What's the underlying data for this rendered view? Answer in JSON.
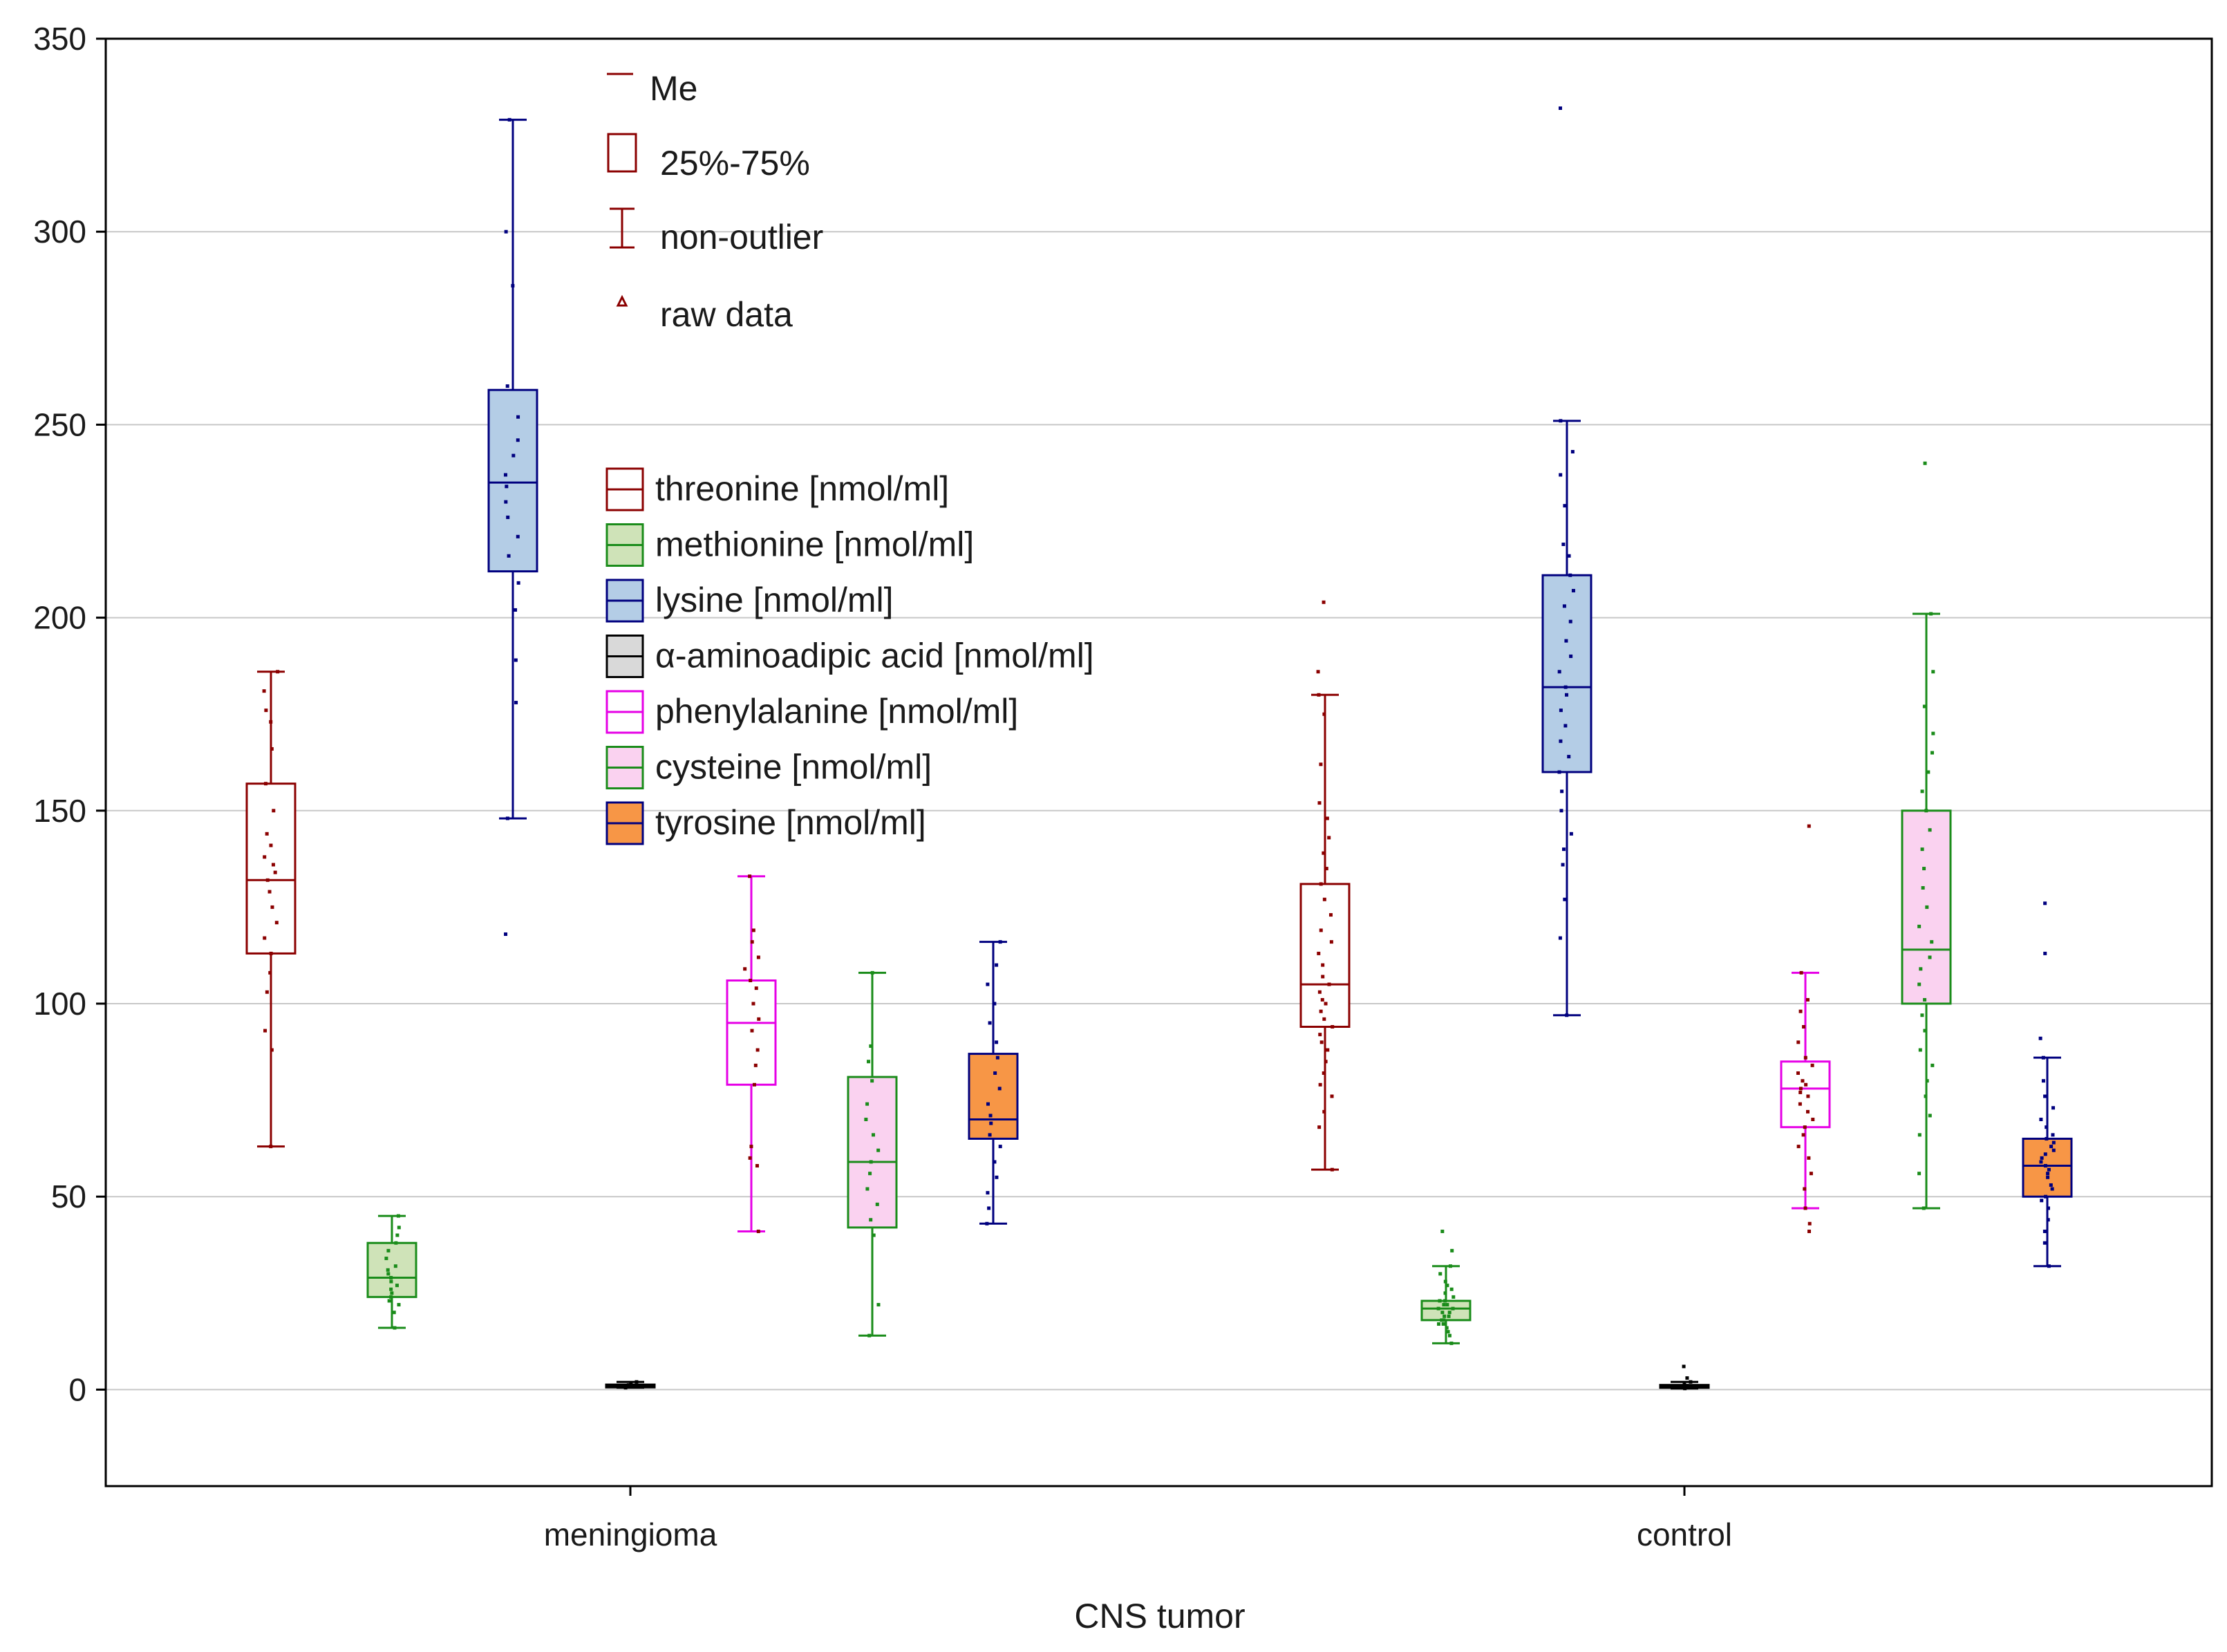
{
  "chart_data": {
    "type": "box",
    "title": "",
    "xlabel": "CNS tumor",
    "ylabel": "",
    "ylim": [
      -25,
      350
    ],
    "yticks": [
      0,
      50,
      100,
      150,
      200,
      250,
      300,
      350
    ],
    "grid": "horizontal",
    "categories": [
      "meningioma",
      "control"
    ],
    "stats_legend": [
      {
        "name": "Me",
        "marker": "median-line"
      },
      {
        "name": "25%-75%",
        "marker": "box"
      },
      {
        "name": "non-outlier",
        "marker": "whisker"
      },
      {
        "name": "raw data",
        "marker": "point"
      }
    ],
    "series": [
      {
        "name": "threonine  [nmol/ml]",
        "box_color": "#ffffff",
        "line_color": "#8b0000",
        "point_color": "#8b0000",
        "data": [
          {
            "category": "meningioma",
            "min": 63,
            "q1": 113,
            "median": 132,
            "q3": 157,
            "max": 186,
            "raw": [
              63,
              88,
              93,
              103,
              108,
              113,
              117,
              121,
              125,
              129,
              132,
              134,
              136,
              138,
              141,
              144,
              150,
              157,
              166,
              173,
              176,
              181,
              186
            ]
          },
          {
            "category": "control",
            "min": 57,
            "q1": 94,
            "median": 105,
            "q3": 131,
            "max": 180,
            "raw": [
              57,
              68,
              72,
              76,
              79,
              82,
              85,
              88,
              90,
              92,
              94,
              96,
              98,
              100,
              101,
              103,
              105,
              107,
              110,
              113,
              116,
              119,
              123,
              127,
              131,
              135,
              139,
              143,
              148,
              152,
              162,
              175,
              180,
              186,
              204
            ]
          }
        ]
      },
      {
        "name": "methionine [nmol/ml]",
        "box_color": "#cfe3b8",
        "line_color": "#1a8c1a",
        "point_color": "#1a8c1a",
        "data": [
          {
            "category": "meningioma",
            "min": 16,
            "q1": 24,
            "median": 29,
            "q3": 38,
            "max": 45,
            "raw": [
              16,
              20,
              22,
              23,
              24,
              25,
              26,
              27,
              28,
              29,
              30,
              31,
              32,
              34,
              36,
              38,
              40,
              42,
              45
            ]
          },
          {
            "category": "control",
            "min": 12,
            "q1": 18,
            "median": 21,
            "q3": 23,
            "max": 32,
            "raw": [
              12,
              14,
              15,
              16,
              17,
              17,
              18,
              18,
              19,
              19,
              20,
              20,
              21,
              21,
              22,
              22,
              23,
              23,
              24,
              25,
              26,
              27,
              28,
              30,
              32,
              36,
              41
            ]
          }
        ]
      },
      {
        "name": "lysine [nmol/ml]",
        "box_color": "#b4cde6",
        "line_color": "#00007f",
        "point_color": "#00007f",
        "data": [
          {
            "category": "meningioma",
            "min": 148,
            "q1": 212,
            "median": 235,
            "q3": 259,
            "max": 329,
            "raw": [
              118,
              148,
              178,
              189,
              202,
              209,
              216,
              221,
              226,
              230,
              234,
              237,
              242,
              246,
              252,
              260,
              286,
              300,
              329
            ]
          },
          {
            "category": "control",
            "min": 97,
            "q1": 160,
            "median": 182,
            "q3": 211,
            "max": 251,
            "raw": [
              97,
              117,
              127,
              136,
              140,
              144,
              150,
              155,
              160,
              164,
              168,
              172,
              176,
              180,
              182,
              186,
              190,
              194,
              199,
              203,
              207,
              211,
              216,
              219,
              229,
              237,
              243,
              251,
              332
            ]
          }
        ]
      },
      {
        "name": "α-aminoadipic acid [nmol/ml]",
        "box_color": "#d9d9d9",
        "line_color": "#000000",
        "point_color": "#000000",
        "data": [
          {
            "category": "meningioma",
            "min": 0.5,
            "q1": 0.8,
            "median": 1,
            "q3": 1.3,
            "max": 2,
            "raw": [
              0.5,
              0.7,
              0.8,
              1,
              1,
              1.2,
              1.5,
              2
            ]
          },
          {
            "category": "control",
            "min": 0.3,
            "q1": 0.6,
            "median": 0.9,
            "q3": 1.2,
            "max": 2,
            "raw": [
              0.3,
              0.5,
              0.7,
              0.9,
              1,
              1.3,
              2,
              3,
              6
            ]
          }
        ]
      },
      {
        "name": "phenylalanine [nmol/ml]",
        "box_color": "#ffffff",
        "line_color": "#e600e6",
        "point_color": "#8b0000",
        "data": [
          {
            "category": "meningioma",
            "min": 41,
            "q1": 79,
            "median": 95,
            "q3": 106,
            "max": 133,
            "raw": [
              41,
              58,
              60,
              63,
              79,
              84,
              88,
              93,
              96,
              100,
              104,
              106,
              109,
              112,
              116,
              119,
              133
            ]
          },
          {
            "category": "control",
            "min": 47,
            "q1": 68,
            "median": 78,
            "q3": 85,
            "max": 108,
            "raw": [
              41,
              43,
              47,
              52,
              56,
              60,
              63,
              66,
              68,
              70,
              72,
              74,
              76,
              77,
              78,
              79,
              80,
              82,
              84,
              86,
              90,
              94,
              98,
              101,
              108,
              146
            ]
          }
        ]
      },
      {
        "name": "cysteine [nmol/ml]",
        "box_color": "#fad2f0",
        "line_color": "#1a8c1a",
        "point_color": "#1a8c1a",
        "data": [
          {
            "category": "meningioma",
            "min": 14,
            "q1": 42,
            "median": 59,
            "q3": 81,
            "max": 108,
            "raw": [
              14,
              22,
              40,
              44,
              48,
              52,
              56,
              59,
              62,
              66,
              70,
              74,
              80,
              85,
              89,
              108
            ]
          },
          {
            "category": "control",
            "min": 47,
            "q1": 100,
            "median": 114,
            "q3": 150,
            "max": 201,
            "raw": [
              47,
              56,
              66,
              71,
              76,
              80,
              84,
              88,
              93,
              97,
              101,
              105,
              109,
              112,
              116,
              120,
              125,
              130,
              135,
              140,
              145,
              150,
              155,
              160,
              165,
              170,
              177,
              186,
              201,
              240
            ]
          }
        ]
      },
      {
        "name": "tyrosine [nmol/ml]",
        "box_color": "#f79646",
        "line_color": "#00007f",
        "point_color": "#00007f",
        "data": [
          {
            "category": "meningioma",
            "min": 43,
            "q1": 65,
            "median": 70,
            "q3": 87,
            "max": 116,
            "raw": [
              43,
              47,
              51,
              55,
              59,
              63,
              66,
              69,
              71,
              74,
              78,
              82,
              86,
              90,
              95,
              100,
              105,
              110,
              116
            ]
          },
          {
            "category": "control",
            "min": 32,
            "q1": 50,
            "median": 58,
            "q3": 65,
            "max": 86,
            "raw": [
              32,
              38,
              41,
              44,
              47,
              49,
              50,
              52,
              53,
              55,
              56,
              57,
              58,
              59,
              60,
              61,
              62,
              63,
              64,
              65,
              66,
              68,
              70,
              73,
              76,
              80,
              86,
              91,
              113,
              126
            ]
          }
        ]
      }
    ]
  }
}
